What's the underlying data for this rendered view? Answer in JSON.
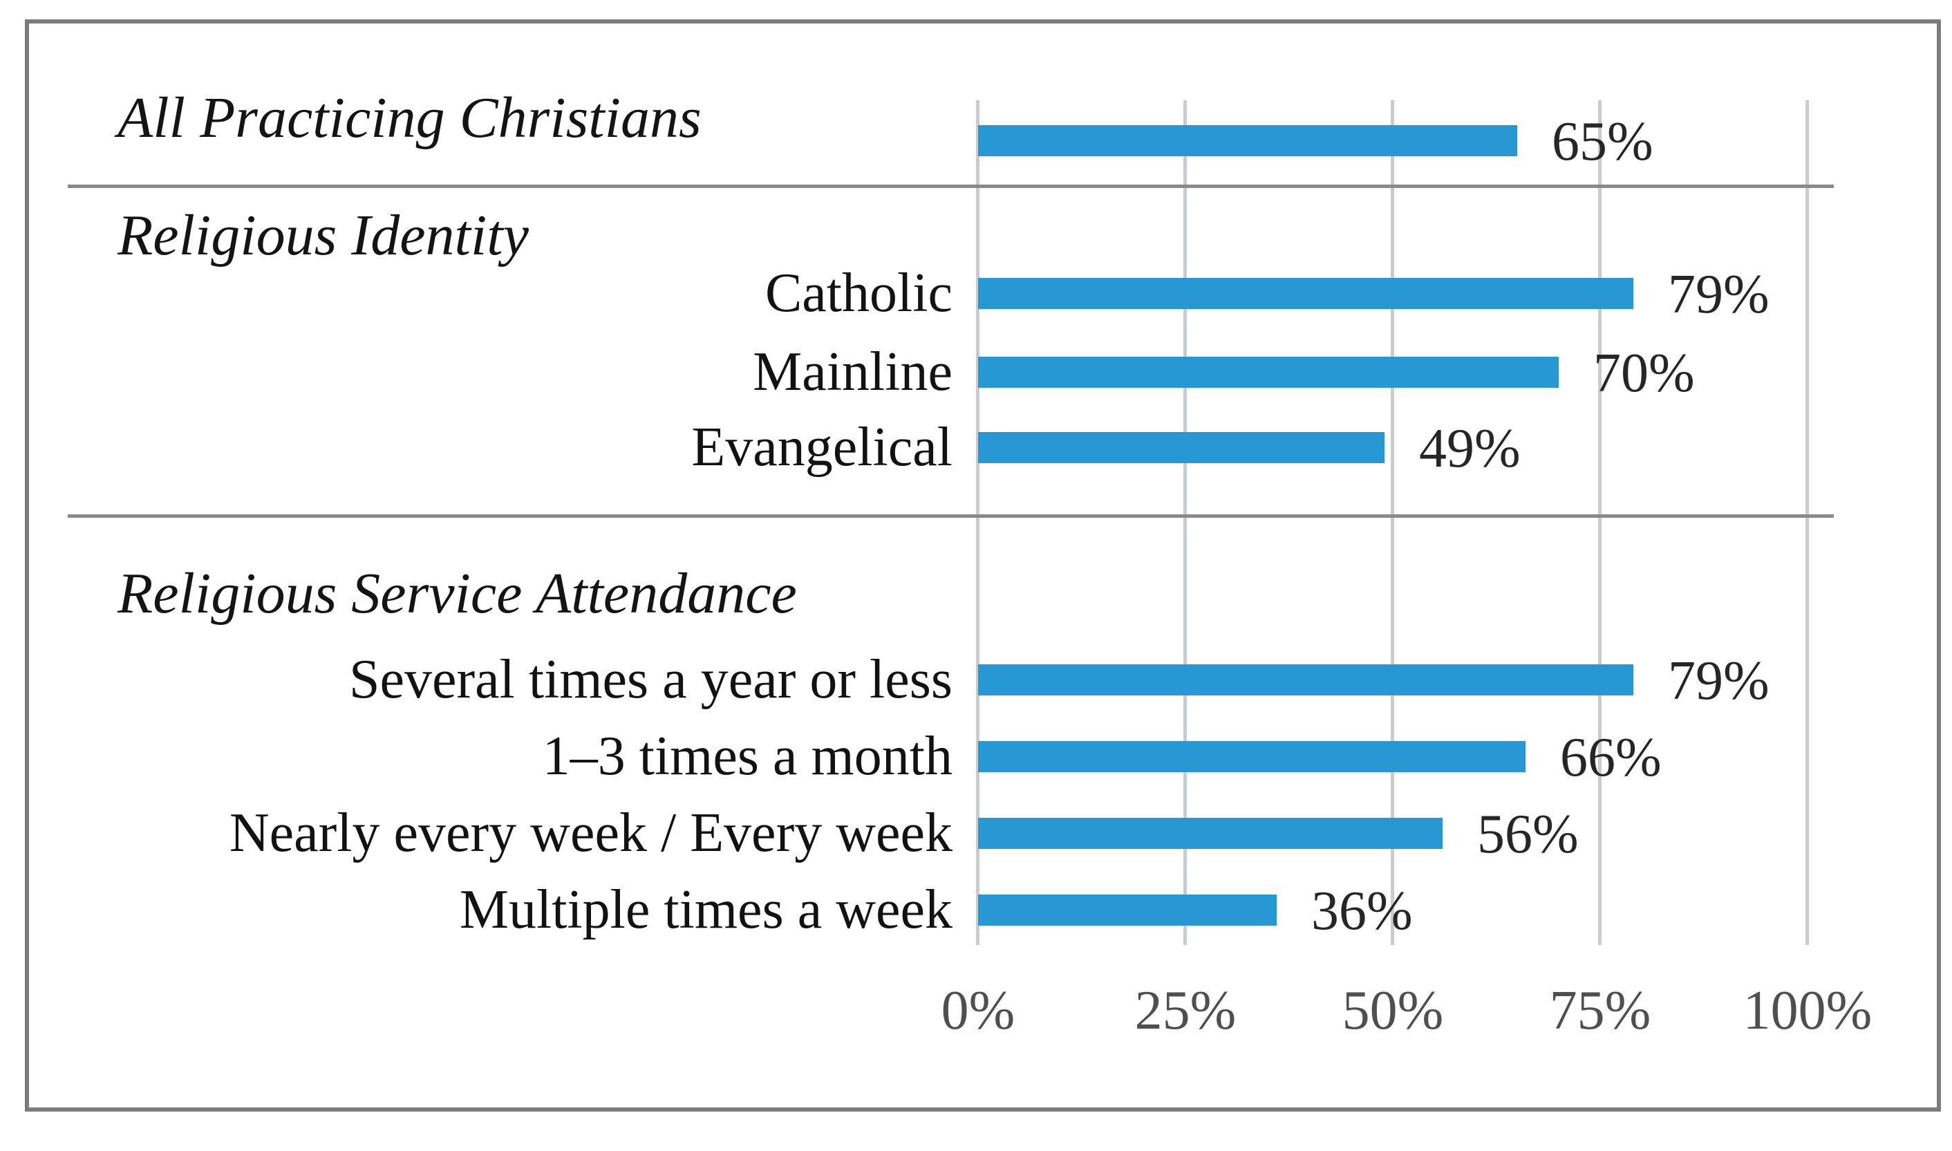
{
  "chart_data": {
    "type": "bar",
    "orientation": "horizontal",
    "title": "",
    "xlabel": "",
    "ylabel": "",
    "unit": "%",
    "xlim": [
      0,
      100
    ],
    "grid": true,
    "x_ticks": [
      {
        "label": "0%",
        "value": 0
      },
      {
        "label": "25%",
        "value": 25
      },
      {
        "label": "50%",
        "value": 50
      },
      {
        "label": "75%",
        "value": 75
      },
      {
        "label": "100%",
        "value": 100
      }
    ],
    "colors": {
      "bar": "#2898d4",
      "gridline": "#c9cbcd",
      "divider": "#8a8a8a",
      "border": "#7c7c7c",
      "tick_text": "#4f4f4f",
      "label_text": "#121212"
    },
    "sections": [
      {
        "header": "All Practicing Christians",
        "rows": [
          {
            "label": "All Practicing Christians",
            "value": 65,
            "value_label": "65%"
          }
        ]
      },
      {
        "header": "Religious Identity",
        "rows": [
          {
            "label": "Catholic",
            "value": 79,
            "value_label": "79%"
          },
          {
            "label": "Mainline",
            "value": 70,
            "value_label": "70%"
          },
          {
            "label": "Evangelical",
            "value": 49,
            "value_label": "49%"
          }
        ]
      },
      {
        "header": "Religious Service Attendance",
        "rows": [
          {
            "label": "Several times a year or less",
            "value": 79,
            "value_label": "79%"
          },
          {
            "label": "1–3 times a month",
            "value": 66,
            "value_label": "66%"
          },
          {
            "label": "Nearly every week / Every week",
            "value": 56,
            "value_label": "56%"
          },
          {
            "label": "Multiple times a week",
            "value": 36,
            "value_label": "36%"
          }
        ]
      }
    ]
  }
}
